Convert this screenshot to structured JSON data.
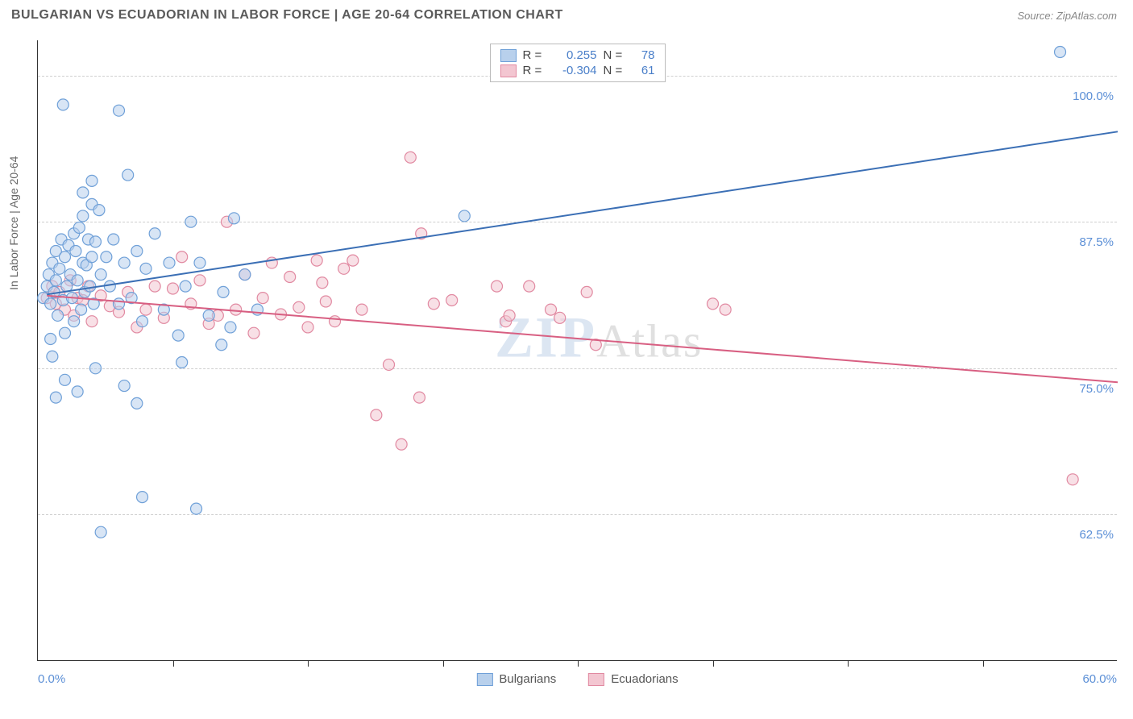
{
  "header": {
    "title": "BULGARIAN VS ECUADORIAN IN LABOR FORCE | AGE 20-64 CORRELATION CHART",
    "source": "Source: ZipAtlas.com"
  },
  "watermark": {
    "zip": "ZIP",
    "atlas": "Atlas"
  },
  "axis": {
    "ytitle": "In Labor Force | Age 20-64",
    "xmin": 0.0,
    "xmax": 60.0,
    "ymin": 50.0,
    "ymax": 103.0,
    "xlabel_min": "0.0%",
    "xlabel_max": "60.0%",
    "xtick_positions": [
      7.5,
      15,
      22.5,
      30,
      37.5,
      45,
      52.5
    ],
    "yticks": [
      {
        "v": 100.0,
        "label": "100.0%"
      },
      {
        "v": 87.5,
        "label": "87.5%"
      },
      {
        "v": 75.0,
        "label": "75.0%"
      },
      {
        "v": 62.5,
        "label": "62.5%"
      }
    ]
  },
  "series": {
    "blue": {
      "name": "Bulgarians",
      "fill": "#b8d0ec",
      "stroke": "#6fa0d8",
      "line": "#3b6fb5",
      "R": "0.255",
      "N": "78",
      "trend": {
        "x1": 0.5,
        "y1": 81.3,
        "x2": 60.0,
        "y2": 95.2
      },
      "points": [
        [
          0.3,
          81
        ],
        [
          0.5,
          82
        ],
        [
          0.6,
          83
        ],
        [
          0.7,
          80.5
        ],
        [
          0.8,
          84
        ],
        [
          0.9,
          81.5
        ],
        [
          1.0,
          85
        ],
        [
          1.0,
          82.5
        ],
        [
          1.1,
          79.5
        ],
        [
          1.2,
          83.5
        ],
        [
          1.3,
          86
        ],
        [
          1.4,
          80.8
        ],
        [
          1.5,
          84.5
        ],
        [
          1.5,
          78
        ],
        [
          1.6,
          82
        ],
        [
          1.7,
          85.5
        ],
        [
          1.8,
          83
        ],
        [
          1.9,
          81
        ],
        [
          2.0,
          86.5
        ],
        [
          2.0,
          79
        ],
        [
          2.1,
          85
        ],
        [
          2.2,
          82.5
        ],
        [
          2.3,
          87
        ],
        [
          2.4,
          80
        ],
        [
          2.5,
          84
        ],
        [
          2.5,
          88
        ],
        [
          2.6,
          81.5
        ],
        [
          2.7,
          83.8
        ],
        [
          2.8,
          86
        ],
        [
          2.9,
          82
        ],
        [
          3.0,
          89
        ],
        [
          3.0,
          84.5
        ],
        [
          3.1,
          80.5
        ],
        [
          3.2,
          85.8
        ],
        [
          1.4,
          97.5
        ],
        [
          3.5,
          83
        ],
        [
          3.2,
          75
        ],
        [
          4.5,
          97
        ],
        [
          2.5,
          90
        ],
        [
          3.0,
          91
        ],
        [
          0.8,
          76
        ],
        [
          3.8,
          84.5
        ],
        [
          4.0,
          82
        ],
        [
          4.2,
          86
        ],
        [
          4.5,
          80.5
        ],
        [
          4.8,
          84
        ],
        [
          5.0,
          91.5
        ],
        [
          5.2,
          81
        ],
        [
          5.5,
          85
        ],
        [
          5.8,
          79
        ],
        [
          6.0,
          83.5
        ],
        [
          6.5,
          86.5
        ],
        [
          7.0,
          80
        ],
        [
          7.3,
          84
        ],
        [
          7.8,
          77.8
        ],
        [
          8.0,
          75.5
        ],
        [
          8.2,
          82
        ],
        [
          8.5,
          87.5
        ],
        [
          9.0,
          84
        ],
        [
          9.5,
          79.5
        ],
        [
          10.2,
          77
        ],
        [
          10.3,
          81.5
        ],
        [
          10.7,
          78.5
        ],
        [
          10.9,
          87.8
        ],
        [
          11.5,
          83
        ],
        [
          12.2,
          80
        ],
        [
          4.8,
          73.5
        ],
        [
          5.5,
          72
        ],
        [
          5.8,
          64
        ],
        [
          3.5,
          61
        ],
        [
          8.8,
          63
        ],
        [
          23.7,
          88
        ],
        [
          56.8,
          102
        ],
        [
          1.5,
          74
        ],
        [
          2.2,
          73
        ],
        [
          1.0,
          72.5
        ],
        [
          0.7,
          77.5
        ],
        [
          3.4,
          88.5
        ]
      ]
    },
    "pink": {
      "name": "Ecuadorians",
      "fill": "#f3c6d1",
      "stroke": "#e189a1",
      "line": "#d85f82",
      "R": "-0.304",
      "N": "61",
      "trend": {
        "x1": 0.5,
        "y1": 81.2,
        "x2": 60.0,
        "y2": 73.8
      },
      "points": [
        [
          0.5,
          81
        ],
        [
          0.8,
          82
        ],
        [
          1.0,
          80.5
        ],
        [
          1.2,
          81.5
        ],
        [
          1.5,
          80
        ],
        [
          1.8,
          82.5
        ],
        [
          2.0,
          79.5
        ],
        [
          2.2,
          81
        ],
        [
          2.5,
          80.8
        ],
        [
          2.8,
          82
        ],
        [
          3.0,
          79
        ],
        [
          3.5,
          81.2
        ],
        [
          4.0,
          80.3
        ],
        [
          4.5,
          79.8
        ],
        [
          5.0,
          81.5
        ],
        [
          5.5,
          78.5
        ],
        [
          6.0,
          80
        ],
        [
          6.5,
          82
        ],
        [
          7.0,
          79.3
        ],
        [
          7.5,
          81.8
        ],
        [
          8.0,
          84.5
        ],
        [
          8.5,
          80.5
        ],
        [
          9.0,
          82.5
        ],
        [
          9.5,
          78.8
        ],
        [
          10.0,
          79.5
        ],
        [
          10.5,
          87.5
        ],
        [
          11.0,
          80
        ],
        [
          11.5,
          83
        ],
        [
          12.0,
          78
        ],
        [
          12.5,
          81
        ],
        [
          13.0,
          84
        ],
        [
          13.5,
          79.6
        ],
        [
          14.0,
          82.8
        ],
        [
          14.5,
          80.2
        ],
        [
          15.0,
          78.5
        ],
        [
          15.5,
          84.2
        ],
        [
          16.0,
          80.7
        ],
        [
          16.5,
          79
        ],
        [
          17.0,
          83.5
        ],
        [
          17.5,
          84.2
        ],
        [
          18.0,
          80
        ],
        [
          18.8,
          71
        ],
        [
          20.7,
          93
        ],
        [
          21.3,
          86.5
        ],
        [
          22.0,
          80.5
        ],
        [
          23.0,
          80.8
        ],
        [
          25.5,
          82
        ],
        [
          26.0,
          79
        ],
        [
          26.2,
          79.5
        ],
        [
          20.2,
          68.5
        ],
        [
          19.5,
          75.3
        ],
        [
          21.2,
          72.5
        ],
        [
          27.3,
          82
        ],
        [
          28.5,
          80
        ],
        [
          29.0,
          79.3
        ],
        [
          30.5,
          81.5
        ],
        [
          31.0,
          77
        ],
        [
          37.5,
          80.5
        ],
        [
          38.2,
          80
        ],
        [
          57.5,
          65.5
        ],
        [
          15.8,
          82.3
        ]
      ]
    }
  },
  "style": {
    "marker_r": 7,
    "marker_opacity": 0.55,
    "line_width": 2,
    "grid_color": "#cfcfcf",
    "tick_color": "#5b8fd6",
    "bg": "#ffffff"
  },
  "legend": {
    "r_label": "R =",
    "n_label": "N ="
  }
}
